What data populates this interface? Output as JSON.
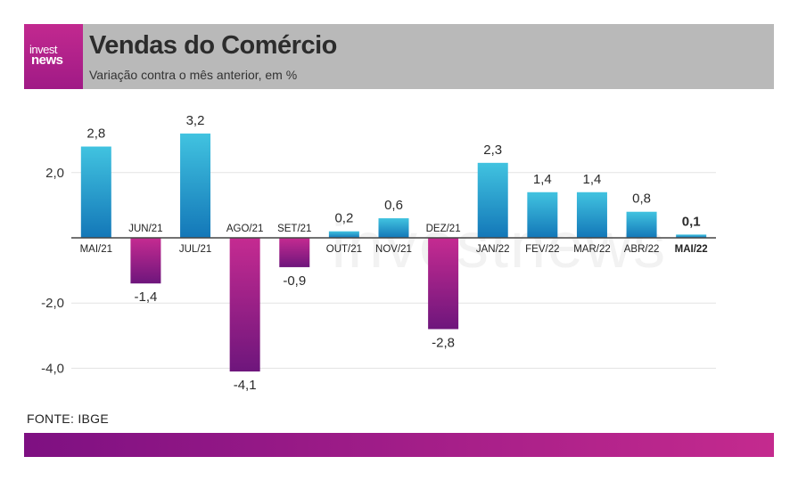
{
  "header": {
    "logo_top": "invest",
    "logo_bottom": "news",
    "title": "Vendas do Comércio",
    "subtitle": "Variação contra o mês anterior, em %"
  },
  "footer": {
    "source": "FONTE: IBGE"
  },
  "colors": {
    "positive_top": "#41c3e0",
    "positive_bottom": "#1377b8",
    "negative_top": "#c52b91",
    "negative_bottom": "#6e167c",
    "grid": "#e3e3e3",
    "baseline": "#444444",
    "text": "#333333"
  },
  "chart_data": {
    "type": "bar",
    "categories": [
      "MAI/21",
      "JUN/21",
      "JUL/21",
      "AGO/21",
      "SET/21",
      "OUT/21",
      "NOV/21",
      "DEZ/21",
      "JAN/22",
      "FEV/22",
      "MAR/22",
      "ABR/22",
      "MAI/22"
    ],
    "values": [
      2.8,
      -1.4,
      3.2,
      -4.1,
      -0.9,
      0.2,
      0.6,
      -2.8,
      2.3,
      1.4,
      1.4,
      0.8,
      0.1
    ],
    "value_labels": [
      "2,8",
      "-1,4",
      "3,2",
      "-4,1",
      "-0,9",
      "0,2",
      "0,6",
      "-2,8",
      "2,3",
      "1,4",
      "1,4",
      "0,8",
      "0,1"
    ],
    "y_ticks": [
      2.0,
      -2.0,
      -4.0
    ],
    "y_tick_labels": [
      "2,0",
      "-2,0",
      "-4,0"
    ],
    "ylim": [
      -4.6,
      3.6
    ],
    "highlighted_category": "MAI/22",
    "watermark": "investnews",
    "grid": true
  }
}
